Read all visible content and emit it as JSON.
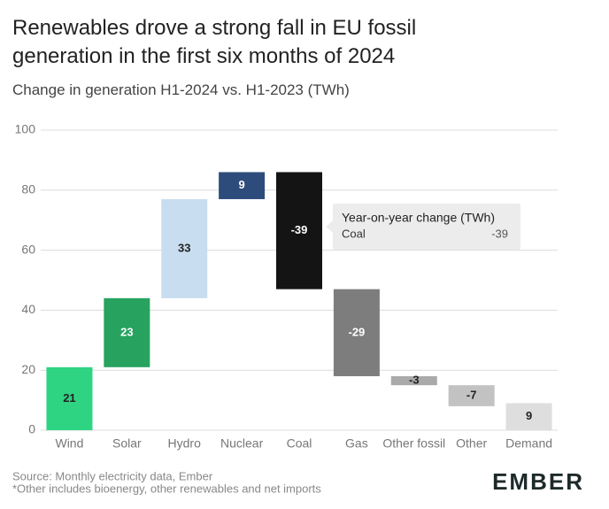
{
  "chart_data": {
    "type": "waterfall",
    "title": "Renewables drove a strong fall in EU fossil generation in the first six months of 2024",
    "subtitle": "Change in generation H1-2024 vs. H1-2023 (TWh)",
    "categories": [
      "Wind",
      "Solar",
      "Hydro",
      "Nuclear",
      "Coal",
      "Gas",
      "Other fossil",
      "Other",
      "Demand"
    ],
    "values": [
      21,
      23,
      33,
      9,
      -39,
      -29,
      -3,
      -7,
      9
    ],
    "colors": [
      "#2fd483",
      "#27a35f",
      "#c8ddef",
      "#2d4c7c",
      "#141414",
      "#7d7d7d",
      "#aaaaaa",
      "#c2c2c2",
      "#dedede"
    ],
    "ylim": [
      0,
      100
    ],
    "yticks": [
      0,
      20,
      40,
      60,
      80,
      100
    ],
    "grid": true,
    "tooltip": {
      "title": "Year-on-year change (TWh)",
      "series": "Coal",
      "value": -39
    },
    "source": "Source: Monthly electricity data, Ember",
    "note": "*Other includes bioenergy, other renewables and net imports",
    "logo": "EMBER"
  }
}
